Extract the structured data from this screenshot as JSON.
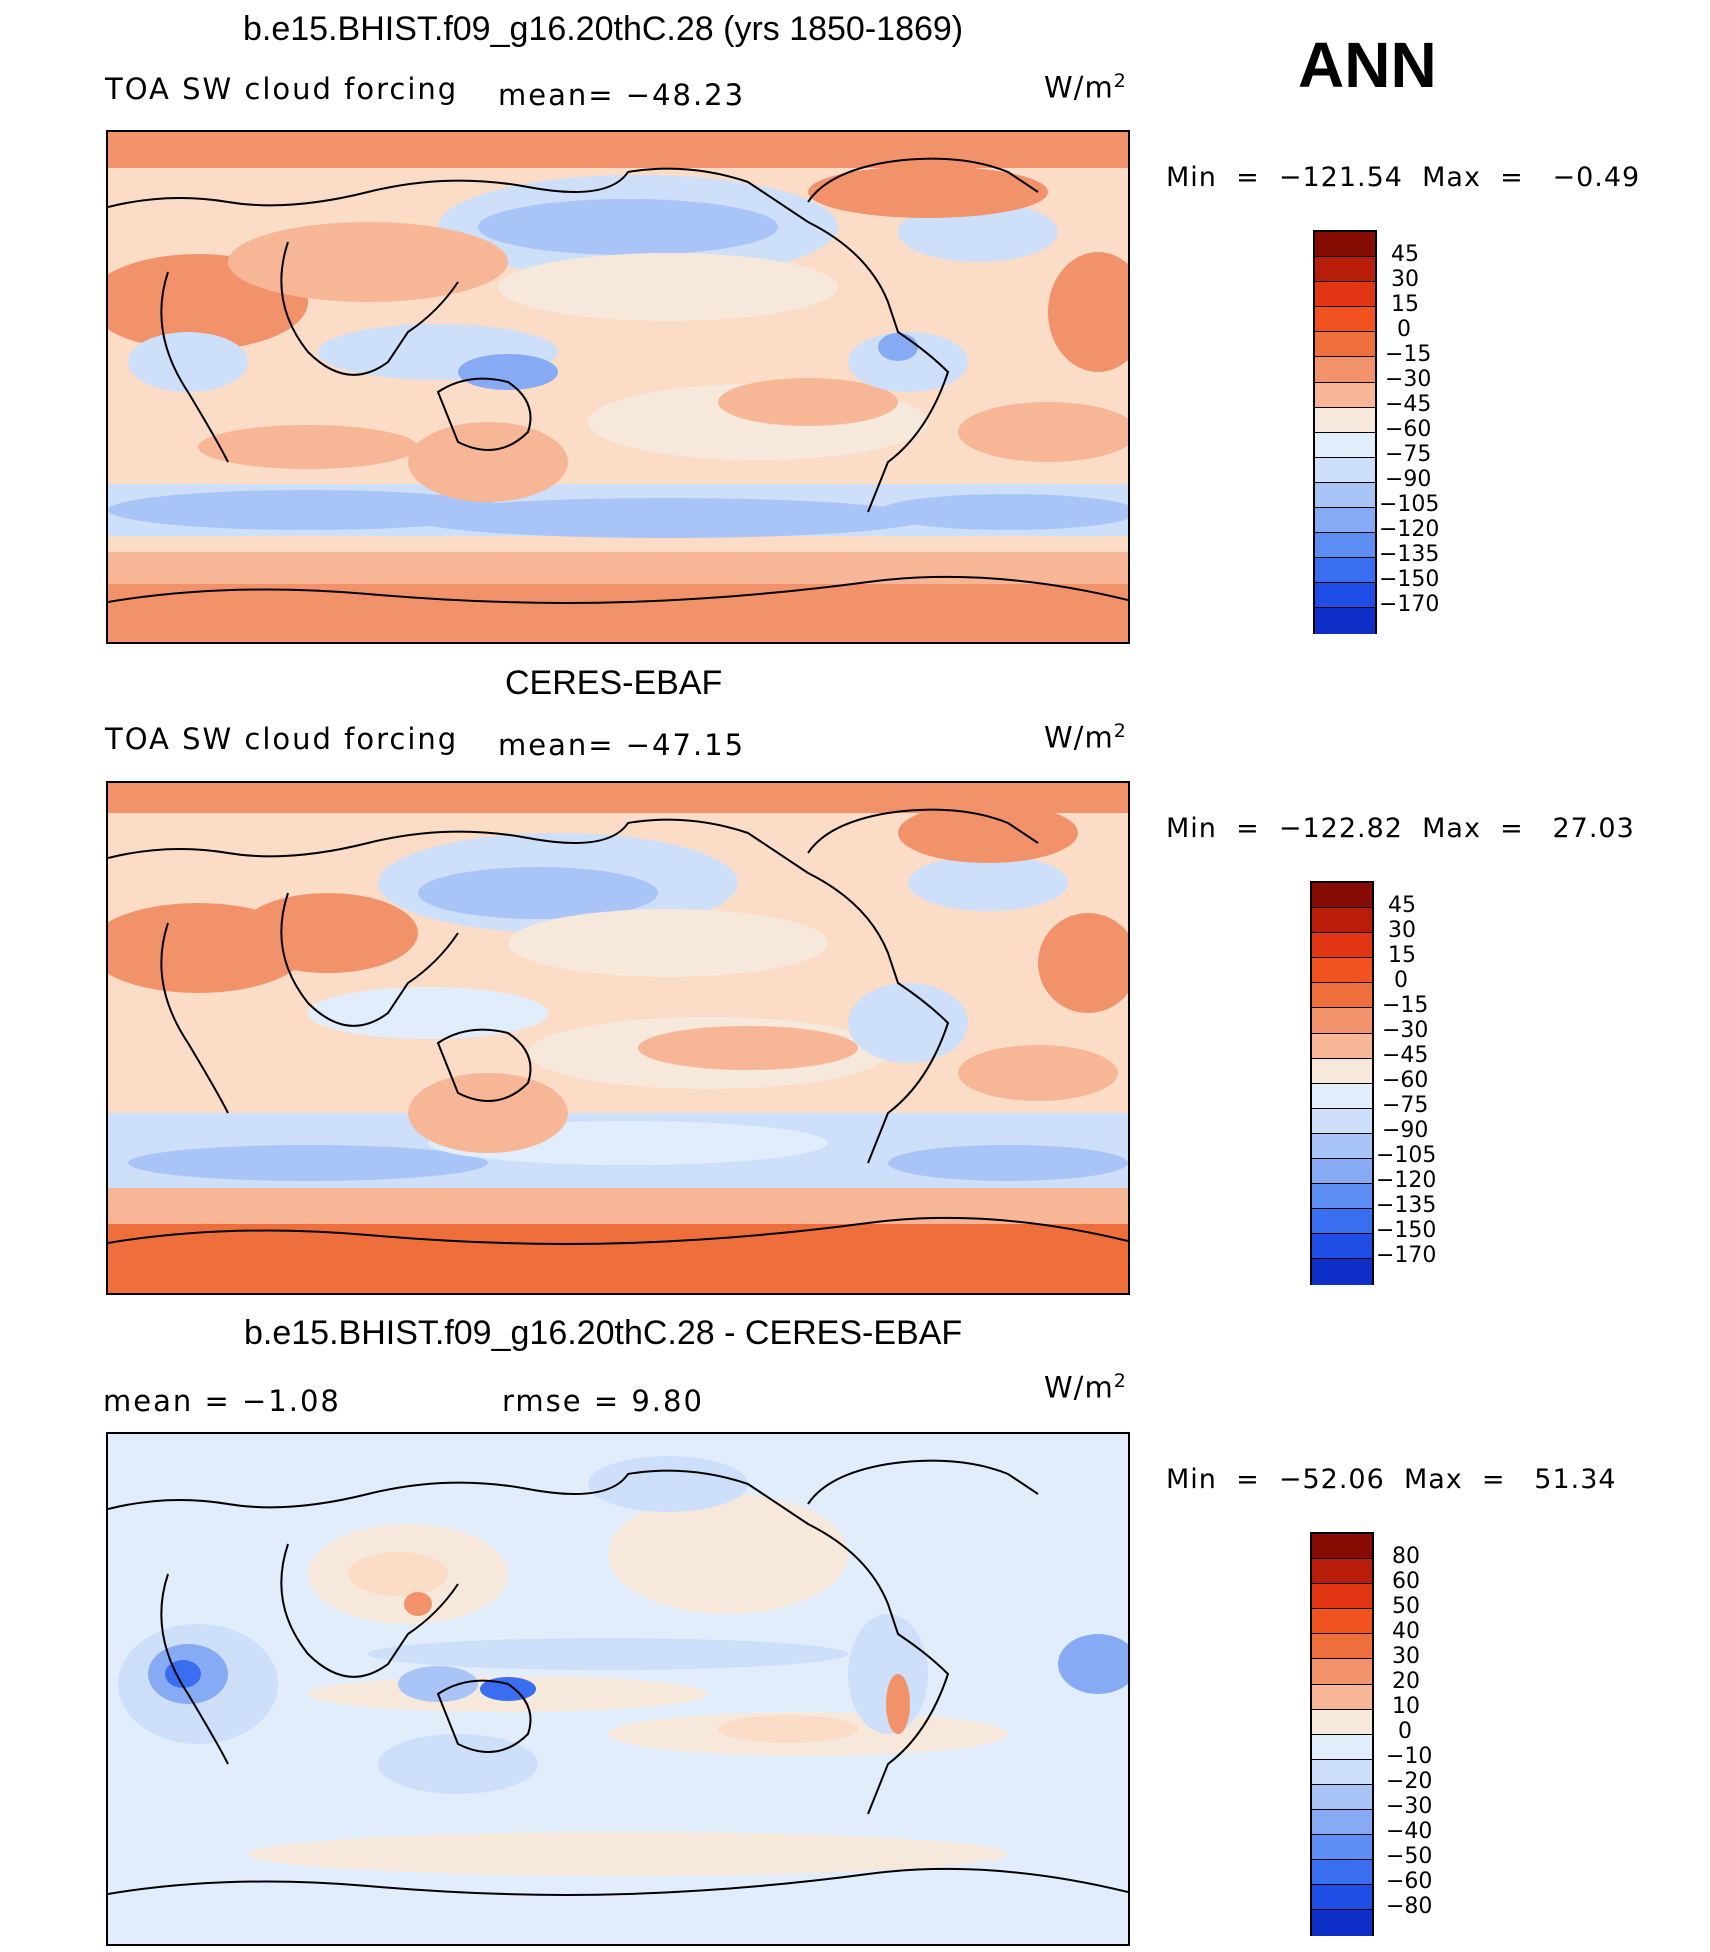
{
  "season": "ANN",
  "colors": {
    "scale": [
      "#f7e8dc",
      "#fbdcc7",
      "#f7b797",
      "#f2926b",
      "#ef6f3c",
      "#f2521f",
      "#e13514",
      "#b81d0a",
      "#870d04"
    ],
    "blues": [
      "#0a0a8a",
      "#0a1aa5",
      "#0f30c8",
      "#1e4ee6",
      "#3a6ef0",
      "#5d8ef3",
      "#86aaf4",
      "#a9c4f6",
      "#cddff9",
      "#e2edfb"
    ]
  },
  "panels": [
    {
      "title": "b.e15.BHIST.f09_g16.20thC.28 (yrs 1850-1869)",
      "left_label": "TOA SW cloud forcing",
      "center_label": "mean= −48.23",
      "units": "W/m",
      "units_sup": "2",
      "minmax": "Min  =  −121.54  Max  =   −0.49",
      "colorbar_labels": [
        "45",
        "30",
        "15",
        "0",
        "−15",
        "−30",
        "−45",
        "−60",
        "−75",
        "−90",
        "−105",
        "−120",
        "−135",
        "−150",
        "−170"
      ]
    },
    {
      "title": "CERES-EBAF",
      "left_label": "TOA SW cloud forcing",
      "center_label": "mean= −47.15",
      "units": "W/m",
      "units_sup": "2",
      "minmax": "Min  =  −122.82  Max  =   27.03",
      "colorbar_labels": [
        "45",
        "30",
        "15",
        "0",
        "−15",
        "−30",
        "−45",
        "−60",
        "−75",
        "−90",
        "−105",
        "−120",
        "−135",
        "−150",
        "−170"
      ]
    },
    {
      "title": "b.e15.BHIST.f09_g16.20thC.28 - CERES-EBAF",
      "left_label": "mean  =   −1.08",
      "center_label": "rmse  =    9.80",
      "units": "W/m",
      "units_sup": "2",
      "minmax": "Min  =  −52.06  Max  =   51.34",
      "colorbar_labels": [
        "80",
        "60",
        "50",
        "40",
        "30",
        "20",
        "10",
        "0",
        "−10",
        "−20",
        "−30",
        "−40",
        "−50",
        "−60",
        "−80"
      ]
    }
  ]
}
